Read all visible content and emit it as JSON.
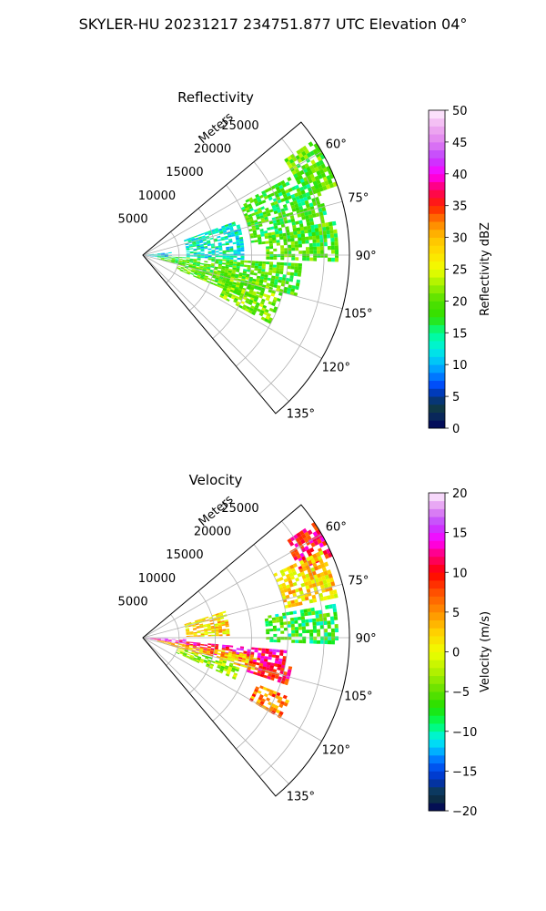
{
  "suptitle": "SKYLER-HU  20231217  234751.877 UTC Elevation 04°",
  "chart_data": [
    {
      "type": "heatmap",
      "title": "Reflectivity",
      "radial_axis_label": "Meters",
      "radial_ticks": [
        5000,
        10000,
        15000,
        20000,
        25000
      ],
      "radial_tick_labels": [
        "5000",
        "10000",
        "15000",
        "20000",
        "25000"
      ],
      "rlim": [
        0,
        28500
      ],
      "theta_ticks": [
        60,
        75,
        90,
        105,
        120,
        135
      ],
      "theta_tick_labels": [
        "60°",
        "75°",
        "90°",
        "105°",
        "120°",
        "135°"
      ],
      "theta_range_deg": [
        50,
        140
      ],
      "grid": true,
      "colorbar": {
        "label": "Reflectivity dBZ",
        "range": [
          0,
          50
        ],
        "ticks": [
          0,
          5,
          10,
          15,
          20,
          25,
          30,
          35,
          40,
          45,
          50
        ],
        "tick_labels": [
          "0",
          "5",
          "10",
          "15",
          "20",
          "25",
          "30",
          "35",
          "40",
          "45",
          "50"
        ],
        "colormap": "NWSRef"
      },
      "echo_regions": [
        {
          "az": [
            56,
            70
          ],
          "range": [
            23500,
            28500
          ],
          "value": 20
        },
        {
          "az": [
            62,
            84
          ],
          "range": [
            15000,
            26000
          ],
          "value": 18
        },
        {
          "az": [
            70,
            92
          ],
          "range": [
            6000,
            14000
          ],
          "value": 13
        },
        {
          "az": [
            84,
            98
          ],
          "range": [
            0,
            4000
          ],
          "value": 11
        },
        {
          "az": [
            80,
            92
          ],
          "range": [
            17000,
            27000
          ],
          "value": 19
        },
        {
          "az": [
            93,
            105
          ],
          "range": [
            2000,
            22000
          ],
          "value": 19
        },
        {
          "az": [
            102,
            112
          ],
          "range": [
            5000,
            17000
          ],
          "value": 20
        },
        {
          "az": [
            104,
            118
          ],
          "range": [
            12000,
            20000
          ],
          "value": 21
        }
      ]
    },
    {
      "type": "heatmap",
      "title": "Velocity",
      "radial_axis_label": "Meters",
      "radial_ticks": [
        5000,
        10000,
        15000,
        20000,
        25000
      ],
      "radial_tick_labels": [
        "5000",
        "10000",
        "15000",
        "20000",
        "25000"
      ],
      "rlim": [
        0,
        28500
      ],
      "theta_ticks": [
        60,
        75,
        90,
        105,
        120,
        135
      ],
      "theta_tick_labels": [
        "60°",
        "75°",
        "90°",
        "105°",
        "120°",
        "135°"
      ],
      "theta_range_deg": [
        50,
        140
      ],
      "grid": true,
      "colorbar": {
        "label": "Velocity (m/s)",
        "range": [
          -20,
          20
        ],
        "ticks": [
          -20,
          -15,
          -10,
          -5,
          0,
          5,
          10,
          15,
          20
        ],
        "tick_labels": [
          "−20",
          "−15",
          "−10",
          "−5",
          "0",
          "5",
          "10",
          "15",
          "20"
        ],
        "colormap": "NWSVel"
      },
      "echo_regions": [
        {
          "az": [
            56,
            66
          ],
          "range": [
            23500,
            28500
          ],
          "value": 10
        },
        {
          "az": [
            64,
            78
          ],
          "range": [
            20000,
            27500
          ],
          "value": 2
        },
        {
          "az": [
            72,
            88
          ],
          "range": [
            6000,
            12000
          ],
          "value": 2
        },
        {
          "az": [
            80,
            92
          ],
          "range": [
            17000,
            27000
          ],
          "value": -7
        },
        {
          "az": [
            92,
            99
          ],
          "range": [
            0,
            6000
          ],
          "value": 15
        },
        {
          "az": [
            95,
            103
          ],
          "range": [
            6000,
            20000
          ],
          "value": 12
        },
        {
          "az": [
            99,
            106
          ],
          "range": [
            2000,
            16000
          ],
          "value": 3
        },
        {
          "az": [
            101,
            108
          ],
          "range": [
            15000,
            21000
          ],
          "value": 10
        },
        {
          "az": [
            106,
            114
          ],
          "range": [
            5000,
            14000
          ],
          "value": -3
        },
        {
          "az": [
            112,
            120
          ],
          "range": [
            17000,
            22000
          ],
          "value": 6
        }
      ]
    }
  ]
}
